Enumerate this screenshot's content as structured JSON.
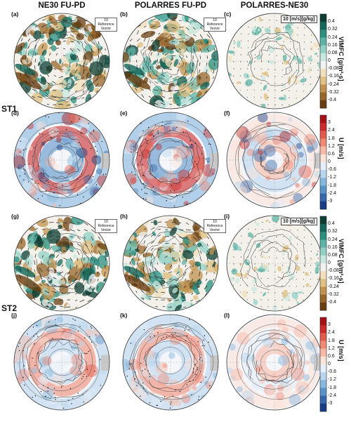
{
  "columns": [
    "NE30 FU-PD",
    "POLARRES FU-PD",
    "POLARRES-NE30"
  ],
  "row_labels": [
    "ST1",
    "ST2"
  ],
  "panel_labels": [
    "(a)",
    "(b)",
    "(c)",
    "(d)",
    "(e)",
    "(f)",
    "(g)",
    "(h)",
    "(i)",
    "(j)",
    "(k)",
    "(l)"
  ],
  "reference_vector_small": {
    "value": "10",
    "label": "Reference Vector"
  },
  "reference_vector_large": "10 [m/s][g/kg]",
  "colorbar_vimfc": {
    "title": "VIMFC [g/m²-s]",
    "ticks": [
      "0.4",
      "0.32",
      "0.24",
      "0.16",
      "0.08",
      "0",
      "-0.08",
      "-0.16",
      "-0.24",
      "-0.32",
      "-0.4"
    ],
    "colors": [
      "#0b3f33",
      "#12675a",
      "#2a8f80",
      "#5db3a6",
      "#92d0c5",
      "#c9e8e2",
      "#f2f2f2",
      "#f1e0bb",
      "#dfbf82",
      "#c2914d",
      "#99662a",
      "#6b3f10"
    ]
  },
  "colorbar_u": {
    "title": "U [m/s]",
    "ticks": [
      "3",
      "2.4",
      "1.8",
      "1.2",
      "0.6",
      "0",
      "-0.6",
      "-1.2",
      "-1.8",
      "-2.4",
      "-3"
    ],
    "colors": [
      "#a50f15",
      "#cb2a2a",
      "#e25a4a",
      "#f08a75",
      "#f7b9a6",
      "#fbe3d8",
      "#e3eef8",
      "#b9d6ee",
      "#86b8de",
      "#5a93c8",
      "#3468ab",
      "#163d85"
    ]
  }
}
